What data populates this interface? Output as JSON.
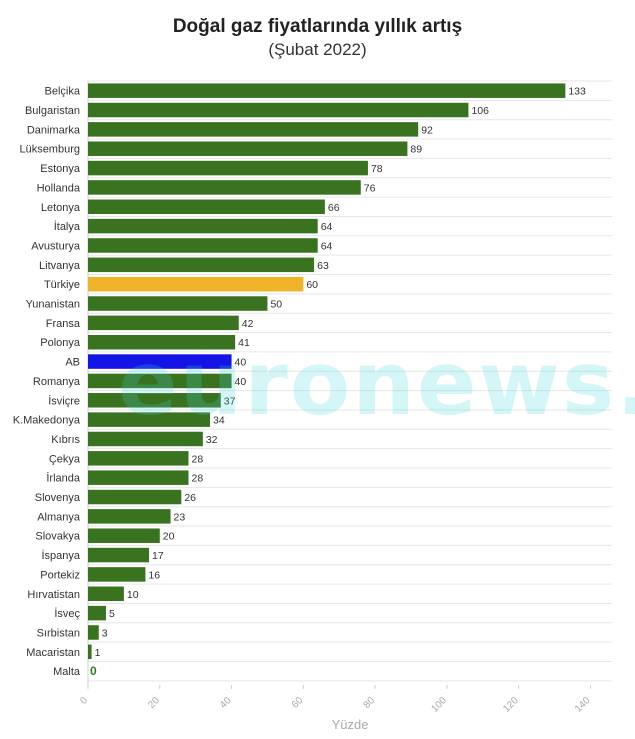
{
  "chart_data": {
    "type": "bar",
    "orientation": "horizontal",
    "title": "Doğal gaz fiyatlarında yıllık artış",
    "subtitle": "(Şubat 2022)",
    "xlabel": "Yüzde",
    "ylabel": "",
    "xlim": [
      0,
      146
    ],
    "ticks": [
      0,
      20,
      40,
      60,
      80,
      100,
      120,
      140
    ],
    "grid": true,
    "categories": [
      "Belçika",
      "Bulgaristan",
      "Danimarka",
      "Lüksemburg",
      "Estonya",
      "Hollanda",
      "Letonya",
      "İtalya",
      "Avusturya",
      "Litvanya",
      "Türkiye",
      "Yunanistan",
      "Fransa",
      "Polonya",
      "AB",
      "Romanya",
      "İsviçre",
      "K.Makedonya",
      "Kıbrıs",
      "Çekya",
      "İrlanda",
      "Slovenya",
      "Almanya",
      "Slovakya",
      "İspanya",
      "Portekiz",
      "Hırvatistan",
      "İsveç",
      "Sırbistan",
      "Macaristan",
      "Malta"
    ],
    "values": [
      133,
      106,
      92,
      89,
      78,
      76,
      66,
      64,
      64,
      63,
      60,
      50,
      42,
      41,
      40,
      40,
      37,
      34,
      32,
      28,
      28,
      26,
      23,
      20,
      17,
      16,
      10,
      5,
      3,
      1,
      0
    ],
    "colors": {
      "default": "#3a7320",
      "Türkiye": "#f0b429",
      "AB": "#1414e6"
    }
  },
  "watermark": "euronews."
}
